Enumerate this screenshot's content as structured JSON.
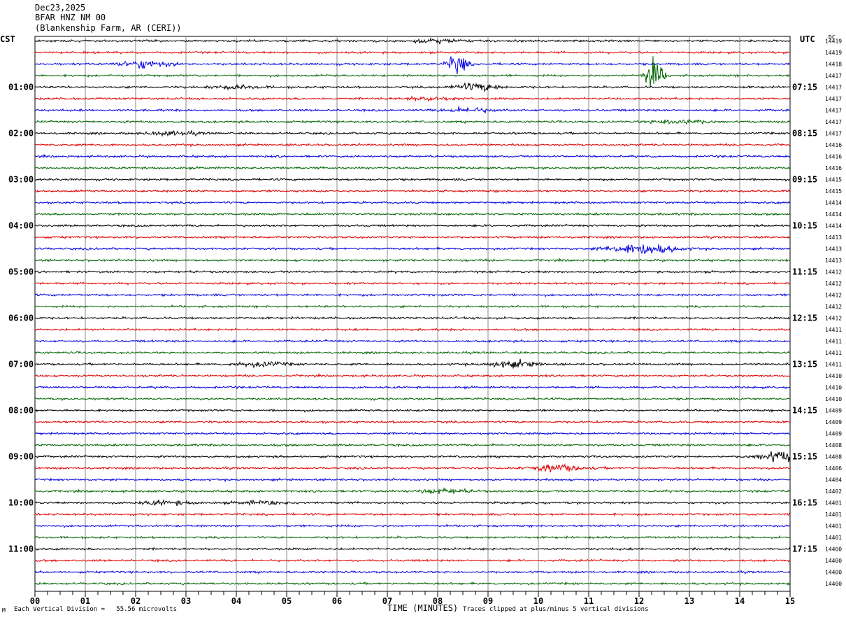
{
  "header": {
    "date": "Dec23,2025",
    "station": "BFAR HNZ NM 00",
    "location": "(Blankenship Farm, AR (CERI))"
  },
  "left_zone": "CST",
  "right_zone": "UTC",
  "dc_label": "DC",
  "footer": {
    "vertical_division": "Each Vertical Division =   55.56 microvolts",
    "axis_label": "TIME (MINUTES)",
    "clip_note": "Traces clipped at plus/minus 5 vertical divisions",
    "mark": "M"
  },
  "chart_data": {
    "type": "line",
    "title": "",
    "xlabel": "TIME (MINUTES)",
    "xlim": [
      0,
      15
    ],
    "x_ticks": [
      "00",
      "01",
      "02",
      "03",
      "04",
      "05",
      "06",
      "07",
      "08",
      "09",
      "10",
      "11",
      "12",
      "13",
      "14",
      "15"
    ],
    "colors": [
      "#000000",
      "#e00000",
      "#0000e0",
      "#006400"
    ],
    "row_minutes": 15,
    "left_labels": [
      "",
      "01:00",
      "02:00",
      "03:00",
      "04:00",
      "05:00",
      "06:00",
      "07:00",
      "08:00",
      "09:00",
      "10:00",
      "11:00"
    ],
    "right_labels": [
      "",
      "07:15",
      "08:15",
      "09:15",
      "10:15",
      "11:15",
      "12:15",
      "13:15",
      "14:15",
      "15:15",
      "16:15",
      "17:15"
    ],
    "dc_values": [
      "14419",
      "14419",
      "14418",
      "14417",
      "14417",
      "14417",
      "14417",
      "14417",
      "14417",
      "14416",
      "14416",
      "14416",
      "14415",
      "14415",
      "14414",
      "14414",
      "14414",
      "14413",
      "14413",
      "14413",
      "14412",
      "14412",
      "14412",
      "14412",
      "14412",
      "14411",
      "14411",
      "14411",
      "14411",
      "14410",
      "14410",
      "14410",
      "14409",
      "14409",
      "14409",
      "14408",
      "14408",
      "14406",
      "14404",
      "14402",
      "14401",
      "14401",
      "14401",
      "14401",
      "14400",
      "14400",
      "14400",
      "14400"
    ],
    "events": [
      {
        "trace": 0,
        "minute": 8.0,
        "amp": 0.5
      },
      {
        "trace": 2,
        "minute": 2.2,
        "amp": 1.0
      },
      {
        "trace": 2,
        "minute": 8.4,
        "amp": 3.0
      },
      {
        "trace": 3,
        "minute": 12.3,
        "amp": 4.5
      },
      {
        "trace": 4,
        "minute": 8.8,
        "amp": 1.0
      },
      {
        "trace": 4,
        "minute": 4.0,
        "amp": 0.4
      },
      {
        "trace": 5,
        "minute": 7.8,
        "amp": 0.5
      },
      {
        "trace": 6,
        "minute": 8.6,
        "amp": 0.6
      },
      {
        "trace": 7,
        "minute": 12.8,
        "amp": 0.7
      },
      {
        "trace": 8,
        "minute": 2.7,
        "amp": 0.5
      },
      {
        "trace": 18,
        "minute": 11.8,
        "amp": 0.9
      },
      {
        "trace": 18,
        "minute": 12.3,
        "amp": 1.0
      },
      {
        "trace": 28,
        "minute": 4.5,
        "amp": 0.6
      },
      {
        "trace": 28,
        "minute": 9.5,
        "amp": 0.8
      },
      {
        "trace": 36,
        "minute": 14.9,
        "amp": 1.4
      },
      {
        "trace": 37,
        "minute": 10.4,
        "amp": 0.9
      },
      {
        "trace": 39,
        "minute": 8.1,
        "amp": 0.6
      },
      {
        "trace": 40,
        "minute": 2.6,
        "amp": 0.5
      },
      {
        "trace": 40,
        "minute": 4.5,
        "amp": 0.4
      }
    ]
  }
}
